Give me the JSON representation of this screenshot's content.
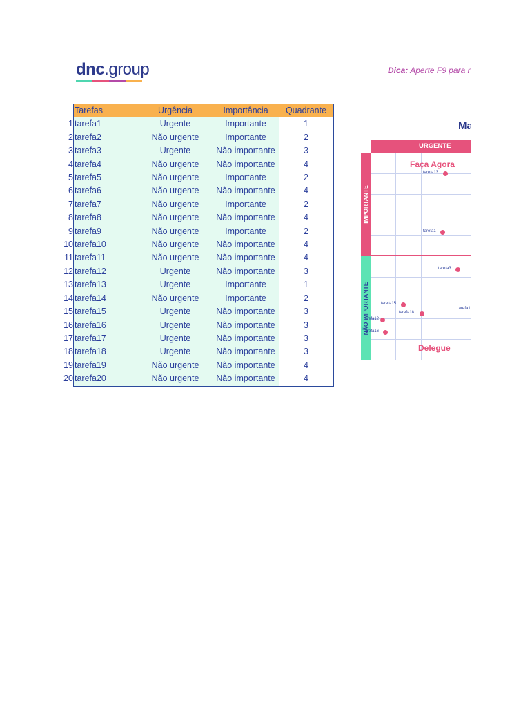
{
  "logo": {
    "brand": "dnc",
    "suffix": ".group",
    "bar_colors": [
      "#4fd6b0",
      "#e6527c",
      "#b44aa8",
      "#f9b14e"
    ]
  },
  "tip": {
    "label": "Dica:",
    "text": "Aperte F9 para r"
  },
  "table": {
    "headers": [
      "Tarefas",
      "Urgência",
      "Importância",
      "Quadrante"
    ],
    "rows": [
      {
        "n": "1",
        "task": "tarefa1",
        "urg": "Urgente",
        "imp": "Importante",
        "q": "1"
      },
      {
        "n": "2",
        "task": "tarefa2",
        "urg": "Não urgente",
        "imp": "Importante",
        "q": "2"
      },
      {
        "n": "3",
        "task": "tarefa3",
        "urg": "Urgente",
        "imp": "Não importante",
        "q": "3"
      },
      {
        "n": "4",
        "task": "tarefa4",
        "urg": "Não urgente",
        "imp": "Não importante",
        "q": "4"
      },
      {
        "n": "5",
        "task": "tarefa5",
        "urg": "Não urgente",
        "imp": "Importante",
        "q": "2"
      },
      {
        "n": "6",
        "task": "tarefa6",
        "urg": "Não urgente",
        "imp": "Não importante",
        "q": "4"
      },
      {
        "n": "7",
        "task": "tarefa7",
        "urg": "Não urgente",
        "imp": "Importante",
        "q": "2"
      },
      {
        "n": "8",
        "task": "tarefa8",
        "urg": "Não urgente",
        "imp": "Não importante",
        "q": "4"
      },
      {
        "n": "9",
        "task": "tarefa9",
        "urg": "Não urgente",
        "imp": "Importante",
        "q": "2"
      },
      {
        "n": "10",
        "task": "tarefa10",
        "urg": "Não urgente",
        "imp": "Não importante",
        "q": "4"
      },
      {
        "n": "11",
        "task": "tarefa11",
        "urg": "Não urgente",
        "imp": "Não importante",
        "q": "4"
      },
      {
        "n": "12",
        "task": "tarefa12",
        "urg": "Urgente",
        "imp": "Não importante",
        "q": "3"
      },
      {
        "n": "13",
        "task": "tarefa13",
        "urg": "Urgente",
        "imp": "Importante",
        "q": "1"
      },
      {
        "n": "14",
        "task": "tarefa14",
        "urg": "Não urgente",
        "imp": "Importante",
        "q": "2"
      },
      {
        "n": "15",
        "task": "tarefa15",
        "urg": "Urgente",
        "imp": "Não importante",
        "q": "3"
      },
      {
        "n": "16",
        "task": "tarefa16",
        "urg": "Urgente",
        "imp": "Não importante",
        "q": "3"
      },
      {
        "n": "17",
        "task": "tarefa17",
        "urg": "Urgente",
        "imp": "Não importante",
        "q": "3"
      },
      {
        "n": "18",
        "task": "tarefa18",
        "urg": "Urgente",
        "imp": "Não importante",
        "q": "3"
      },
      {
        "n": "19",
        "task": "tarefa19",
        "urg": "Não urgente",
        "imp": "Não importante",
        "q": "4"
      },
      {
        "n": "20",
        "task": "tarefa20",
        "urg": "Não urgente",
        "imp": "Não importante",
        "q": "4"
      }
    ]
  },
  "matrix": {
    "title": "Ma",
    "urgent_header": "URGENTE",
    "important_label": "IMPORTANTE",
    "not_important_label": "NÃO IMPORTANTE",
    "q1_label": "Faça Agora",
    "q3_label": "Delegue",
    "points": [
      {
        "label": "tarefa13"
      },
      {
        "label": "tarefa1"
      },
      {
        "label": "tarefa3"
      },
      {
        "label": "tarefa15"
      },
      {
        "label": "tarefa18"
      },
      {
        "label": "tarefa12"
      },
      {
        "label": "tarefa16"
      },
      {
        "label": "tarefa1"
      }
    ]
  },
  "colors": {
    "pink": "#e6527c",
    "mint": "#5de3b4",
    "navy": "#2b3f9c",
    "orange": "#f9b14e",
    "light_mint": "#e4faf1"
  }
}
